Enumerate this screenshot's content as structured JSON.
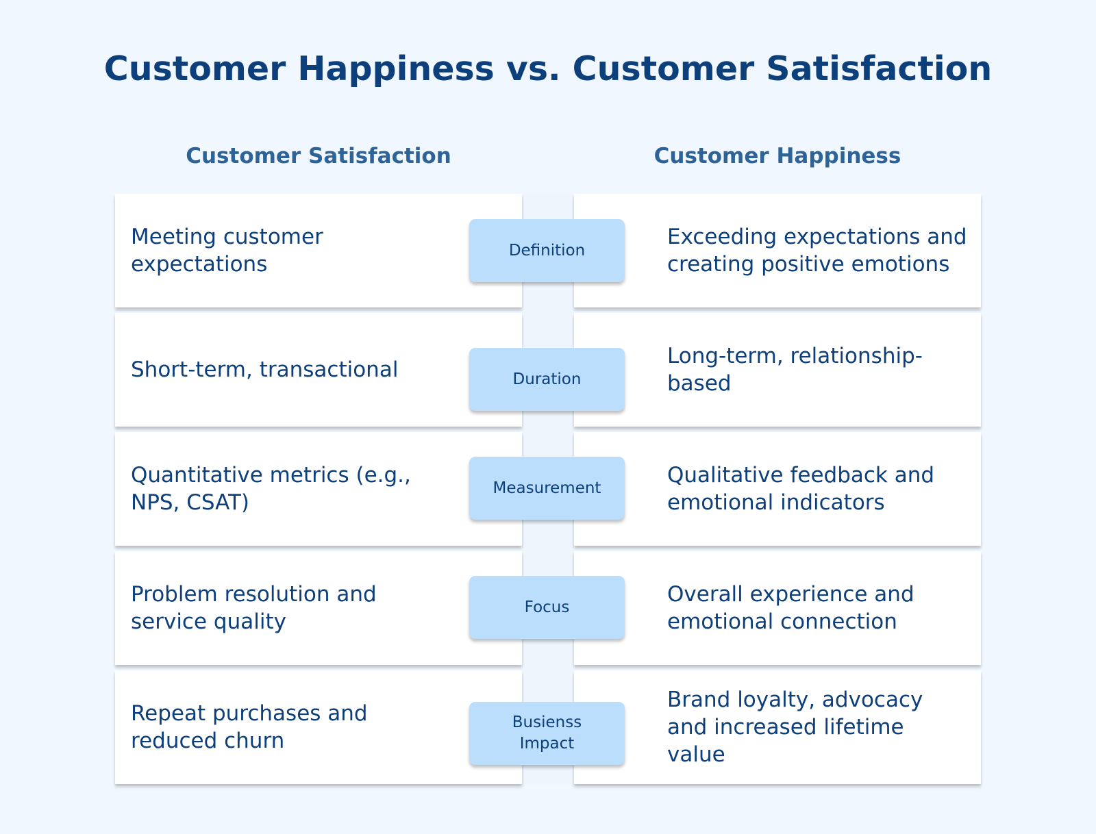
{
  "title": "Customer Happiness vs. Customer Satisfaction",
  "columns": {
    "left": "Customer Satisfaction",
    "right": "Customer Happiness"
  },
  "rows": [
    {
      "label": "Definition",
      "satisfaction": "Meeting customer expectations",
      "happiness": "Exceeding expectations and creating positive emotions"
    },
    {
      "label": "Duration",
      "satisfaction": "Short-term, transactional",
      "happiness": "Long-term, relationship-based"
    },
    {
      "label": "Measurement",
      "satisfaction": "Quantitative metrics (e.g., NPS, CSAT)",
      "happiness": "Qualitative feedback and emotional indicators"
    },
    {
      "label": "Focus",
      "satisfaction": "Problem resolution and service quality",
      "happiness": "Overall experience and emotional connection"
    },
    {
      "label": "Busienss Impact",
      "satisfaction": "Repeat purchases and reduced churn",
      "happiness": "Brand loyalty, advocacy and increased lifetime value"
    }
  ],
  "colors": {
    "background": "#f0f7fe",
    "title": "#0d3f7a",
    "header": "#2d6396",
    "label_bg": "#bbdefc",
    "card": "#ffffff"
  }
}
